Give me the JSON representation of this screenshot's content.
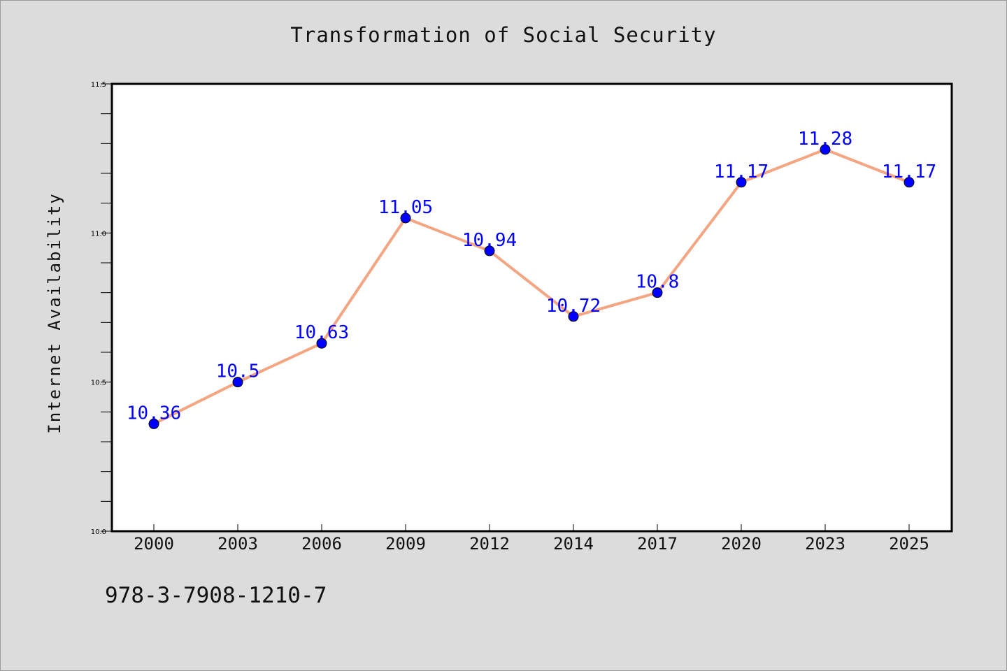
{
  "chart_data": {
    "type": "line",
    "title": "Transformation of Social Security",
    "xlabel": "",
    "ylabel": "Internet Availability",
    "categories": [
      "2000",
      "2003",
      "2006",
      "2009",
      "2012",
      "2014",
      "2017",
      "2020",
      "2023",
      "2025"
    ],
    "series": [
      {
        "values": [
          10.36,
          10.5,
          10.63,
          11.05,
          10.94,
          10.72,
          10.8,
          11.17,
          11.28,
          11.17
        ],
        "data_labels": [
          "10.36",
          "10.5",
          "10.63",
          "11.05",
          "10.94",
          "10.72",
          "10.8",
          "11.17",
          "11.28",
          "11.17"
        ]
      }
    ],
    "ylim": [
      10.0,
      11.5
    ],
    "y_ticks": [
      "10.0",
      "10.5",
      "11.0",
      "11.5"
    ],
    "grid": false,
    "colors": {
      "line": "#f4a582",
      "marker": "#0000ff",
      "data_label": "#0000ff",
      "background": "#dcdcdc",
      "plot_area": "#ffffff"
    }
  },
  "footer": {
    "code": "978-3-7908-1210-7"
  }
}
